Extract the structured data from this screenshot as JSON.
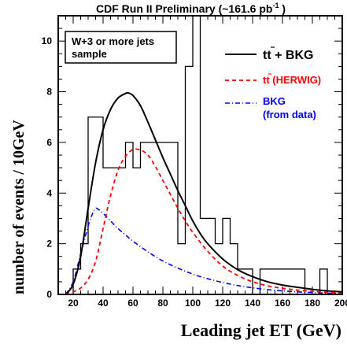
{
  "chart_data": {
    "type": "line",
    "header": {
      "text": "CDF Run II Preliminary (~161.6 pb",
      "sup": "-1",
      "close": " )"
    },
    "xlabel": "Leading jet ET (GeV)",
    "ylabel": "number of events / 10GeV",
    "xlim": [
      10,
      200
    ],
    "ylim": [
      0,
      11
    ],
    "xticks": [
      20,
      40,
      60,
      80,
      100,
      120,
      140,
      160,
      180,
      200
    ],
    "yticks": [
      0,
      2,
      4,
      6,
      8,
      10
    ],
    "sample_box": {
      "line1": "W+3 or more jets",
      "line2": "sample"
    },
    "legend": [
      {
        "label": "tt + BKG",
        "color": "#000000",
        "dash": "",
        "bold_color": "#000000"
      },
      {
        "label": "tt (HERWIG)",
        "color": "#ff0000",
        "dash": "5,4",
        "bold_color": "#ff0000"
      },
      {
        "label": "BKG",
        "label2": "(from data)",
        "color": "#0000ff",
        "dash": "6,3,1,3",
        "bold_color": "#0000ff"
      }
    ],
    "histogram": {
      "name": "data",
      "bin_width": 5,
      "bins": [
        [
          15,
          0
        ],
        [
          20,
          1
        ],
        [
          25,
          2
        ],
        [
          30,
          7
        ],
        [
          35,
          7
        ],
        [
          40,
          5
        ],
        [
          45,
          5
        ],
        [
          50,
          5
        ],
        [
          55,
          6
        ],
        [
          60,
          5
        ],
        [
          65,
          6
        ],
        [
          70,
          6
        ],
        [
          75,
          6
        ],
        [
          80,
          6
        ],
        [
          85,
          6
        ],
        [
          90,
          2
        ],
        [
          95,
          9
        ],
        [
          100,
          11
        ],
        [
          105,
          3
        ],
        [
          110,
          3
        ],
        [
          115,
          2
        ],
        [
          120,
          3
        ],
        [
          125,
          2
        ],
        [
          130,
          1
        ],
        [
          135,
          1
        ],
        [
          140,
          0
        ],
        [
          145,
          1
        ],
        [
          150,
          1
        ],
        [
          155,
          1
        ],
        [
          160,
          1
        ],
        [
          165,
          1
        ],
        [
          170,
          1
        ],
        [
          175,
          0
        ],
        [
          180,
          0
        ],
        [
          185,
          1
        ],
        [
          190,
          0
        ],
        [
          195,
          0
        ]
      ]
    },
    "series": [
      {
        "name": "tt + BKG",
        "color": "#000000",
        "x": [
          15,
          20,
          25,
          30,
          35,
          40,
          45,
          50,
          55,
          57,
          60,
          65,
          70,
          75,
          80,
          85,
          90,
          95,
          100,
          105,
          110,
          120,
          130,
          140,
          150,
          160,
          170,
          180,
          190,
          200
        ],
        "y": [
          0.0,
          0.4,
          1.5,
          3.4,
          5.2,
          6.5,
          7.3,
          7.75,
          7.93,
          7.95,
          7.85,
          7.45,
          6.8,
          6.1,
          5.4,
          4.75,
          4.1,
          3.5,
          2.9,
          2.4,
          2.0,
          1.4,
          0.98,
          0.7,
          0.5,
          0.37,
          0.28,
          0.2,
          0.14,
          0.1
        ]
      },
      {
        "name": "tt (HERWIG)",
        "color": "#ff0000",
        "x": [
          15,
          20,
          25,
          30,
          35,
          40,
          45,
          50,
          55,
          60,
          65,
          70,
          75,
          80,
          85,
          90,
          95,
          100,
          110,
          120,
          130,
          140,
          150,
          160,
          170,
          180,
          190,
          200
        ],
        "y": [
          0.0,
          0.1,
          0.25,
          0.6,
          1.3,
          2.6,
          3.9,
          4.9,
          5.45,
          5.72,
          5.7,
          5.5,
          5.05,
          4.5,
          3.95,
          3.4,
          2.9,
          2.45,
          1.7,
          1.12,
          0.75,
          0.5,
          0.34,
          0.24,
          0.17,
          0.12,
          0.08,
          0.06
        ]
      },
      {
        "name": "BKG",
        "color": "#0000ff",
        "x": [
          15,
          20,
          25,
          30,
          33,
          35,
          37,
          40,
          45,
          50,
          55,
          60,
          70,
          80,
          90,
          100,
          110,
          120,
          130,
          140,
          150,
          160,
          170,
          180,
          190,
          200
        ],
        "y": [
          0.0,
          0.5,
          1.6,
          2.7,
          3.2,
          3.4,
          3.35,
          3.2,
          2.9,
          2.6,
          2.35,
          2.1,
          1.68,
          1.32,
          1.04,
          0.8,
          0.62,
          0.47,
          0.35,
          0.26,
          0.19,
          0.14,
          0.1,
          0.07,
          0.05,
          0.04
        ]
      }
    ]
  }
}
